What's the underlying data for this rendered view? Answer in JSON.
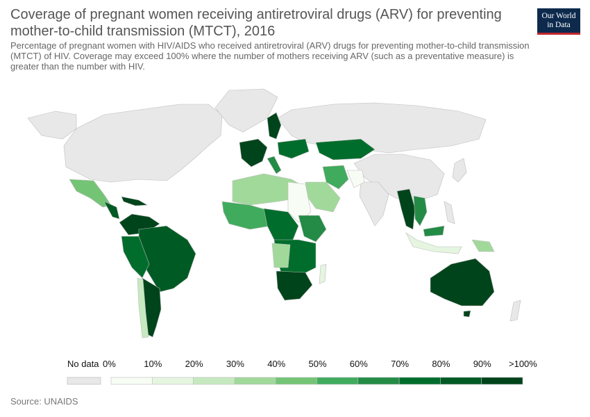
{
  "header": {
    "title": "Coverage of pregnant women receiving antiretroviral drugs (ARV) for preventing mother-to-child transmission (MTCT), 2016",
    "subtitle": "Percentage of pregnant women with HIV/AIDS who received antiretroviral (ARV) drugs for preventing mother-to-child transmission (MTCT) of HIV. Coverage may exceed 100% where the number of mothers receiving ARV (such as a preventative measure) is greater than the number with HIV."
  },
  "logo": {
    "line1": "Our World",
    "line2": "in Data",
    "bg_color": "#0d2a4d",
    "accent_color": "#c0282e"
  },
  "legend": {
    "no_data_label": "No data",
    "no_data_color": "#e8e8e8",
    "bins": [
      {
        "label": "0%",
        "color": "#f7fcf5"
      },
      {
        "label": "10%",
        "color": "#e5f5e0"
      },
      {
        "label": "20%",
        "color": "#c7e9c0"
      },
      {
        "label": "30%",
        "color": "#a1d99b"
      },
      {
        "label": "40%",
        "color": "#74c476"
      },
      {
        "label": "50%",
        "color": "#41ab5d"
      },
      {
        "label": "60%",
        "color": "#238b45"
      },
      {
        "label": "70%",
        "color": "#006d2c"
      },
      {
        "label": "80%",
        "color": "#005a24"
      },
      {
        "label": "90%",
        "color": "#00441b"
      }
    ],
    "max_label": ">100%"
  },
  "source": "Source: UNAIDS"
}
